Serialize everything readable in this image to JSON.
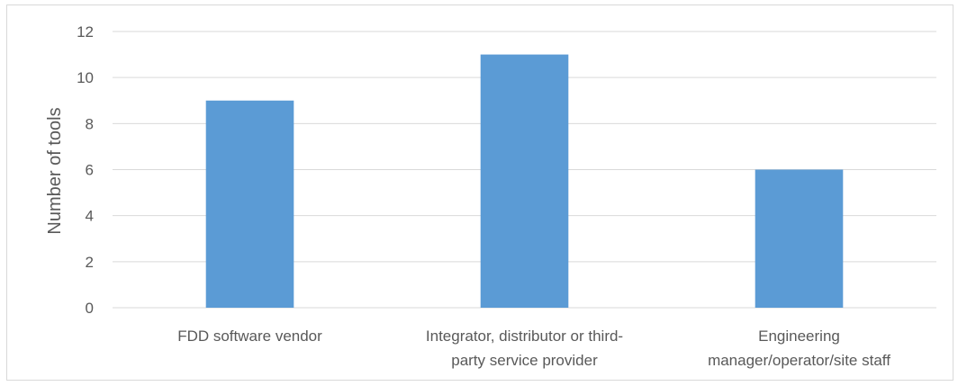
{
  "chart_data": {
    "type": "bar",
    "title": "",
    "xlabel": "",
    "ylabel": "Number of tools",
    "categories": [
      [
        "FDD software vendor"
      ],
      [
        "Integrator, distributor or third-",
        "party service provider"
      ],
      [
        "Engineering",
        "manager/operator/site staff"
      ]
    ],
    "values": [
      9,
      11,
      6
    ],
    "ylim": [
      0,
      12
    ],
    "yticks": [
      0,
      2,
      4,
      6,
      8,
      10,
      12
    ],
    "grid": true,
    "legend": "none",
    "bar_color": "#5b9bd5",
    "grid_color": "#d9d9d9"
  }
}
